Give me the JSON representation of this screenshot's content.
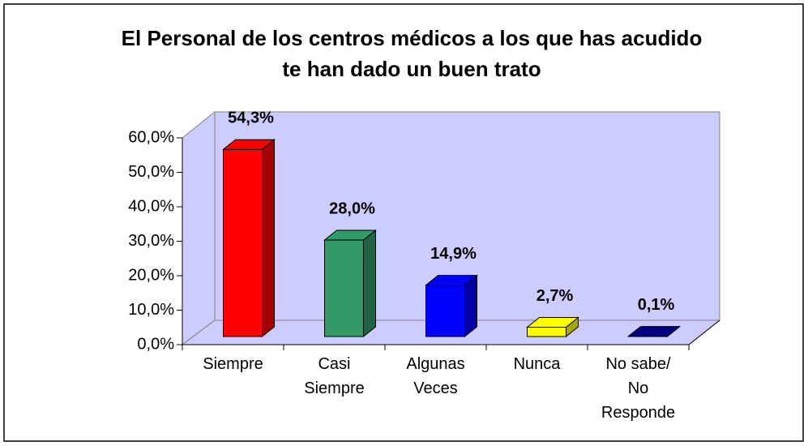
{
  "chart_data": {
    "type": "bar3d",
    "title": "El Personal de los centros médicos a los que has acudido te han dado un buen trato",
    "categories": [
      "Siempre",
      "Casi Siempre",
      "Algunas Veces",
      "Nunca",
      "No sabe/ No Responde"
    ],
    "values": [
      54.3,
      28.0,
      14.9,
      2.7,
      0.1
    ],
    "value_labels": [
      "54,3%",
      "28,0%",
      "14,9%",
      "2,7%",
      "0,1%"
    ],
    "colors": [
      "#ff0000",
      "#339966",
      "#0000ff",
      "#ffff00",
      "#000080"
    ],
    "ylim": [
      0,
      60
    ],
    "yticks": [
      {
        "value": 0,
        "label": "0,0%"
      },
      {
        "value": 10,
        "label": "10,0%"
      },
      {
        "value": 20,
        "label": "20,0%"
      },
      {
        "value": 30,
        "label": "30,0%"
      },
      {
        "value": 40,
        "label": "40,0%"
      },
      {
        "value": 50,
        "label": "50,0%"
      },
      {
        "value": 60,
        "label": "60,0%"
      }
    ]
  }
}
